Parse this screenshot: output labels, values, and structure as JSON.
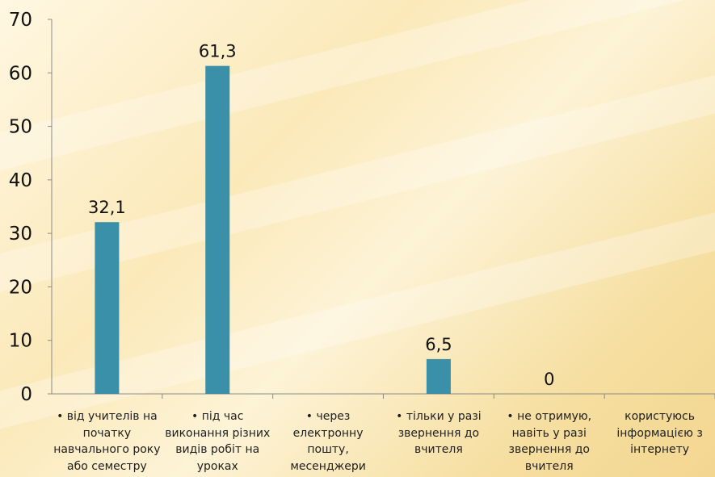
{
  "chart_data": {
    "type": "bar",
    "categories": [
      "• від учителів на початку навчального року або семестру",
      "• під час виконання різних видів робіт на уроках",
      "• через електронну пошту, месенджери",
      "• тільки у разі звернення до вчителя",
      "• не отримую, навіть у разі звернення до вчителя",
      "користуюсь інформацією з інтернету"
    ],
    "values": [
      32.1,
      61.3,
      null,
      6.5,
      0,
      null
    ],
    "data_labels": [
      "32,1",
      "61,3",
      "",
      "6,5",
      "0",
      ""
    ],
    "ylim": [
      0,
      70
    ],
    "yticks": [
      0,
      10,
      20,
      30,
      40,
      50,
      60,
      70
    ],
    "ytick_labels": [
      "0",
      "10",
      "20",
      "30",
      "40",
      "50",
      "60",
      "70"
    ],
    "bar_color": "#3a8fa9",
    "grid": false,
    "title": "",
    "xlabel": "",
    "ylabel": ""
  }
}
